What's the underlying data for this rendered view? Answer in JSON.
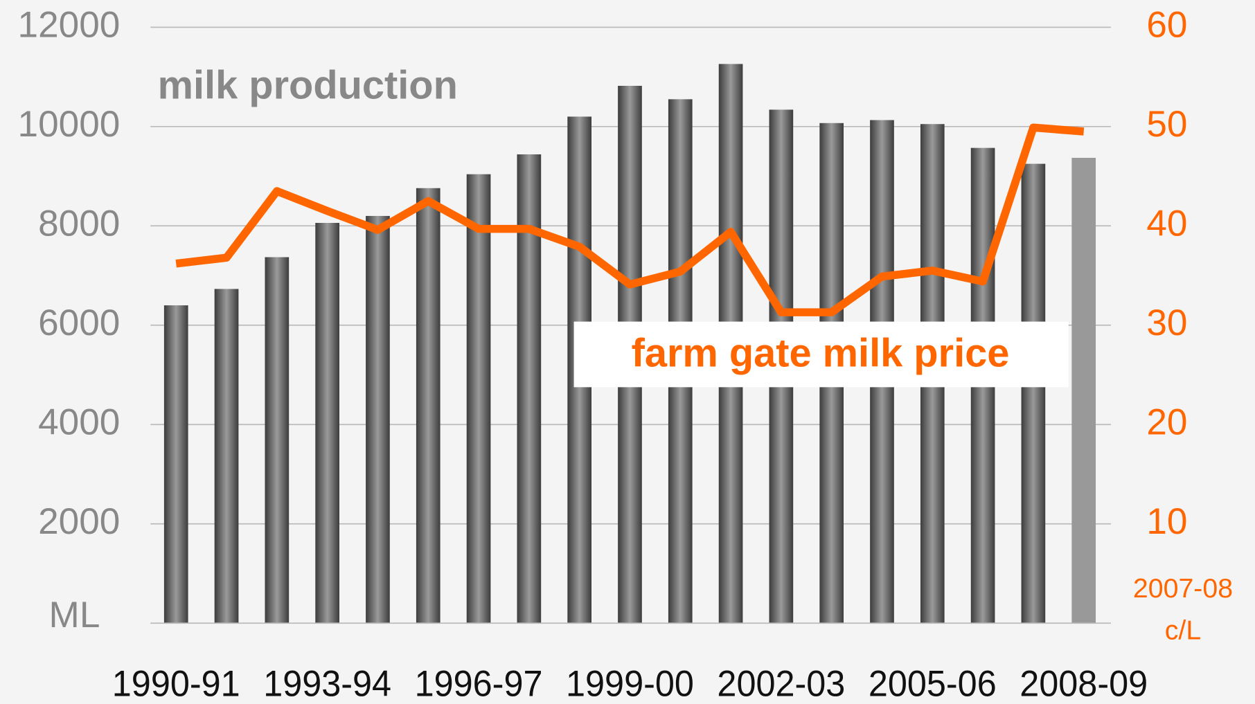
{
  "chart_data": {
    "type": "bar_line",
    "categories": [
      "1990-91",
      null,
      null,
      "1993-94",
      null,
      null,
      "1996-97",
      null,
      null,
      "1999-00",
      null,
      null,
      "2002-03",
      null,
      null,
      "2005-06",
      null,
      null,
      "2008-09"
    ],
    "series": [
      {
        "name": "milk production",
        "type": "bar",
        "color": "#555555",
        "highlight_color": "#999999",
        "highlight_index": 18,
        "values": [
          6400,
          6730,
          7370,
          8060,
          8200,
          8760,
          9040,
          9440,
          10200,
          10820,
          10550,
          11260,
          10340,
          10070,
          10130,
          10050,
          9570,
          9250,
          9370
        ]
      },
      {
        "name": "farm gate milk price",
        "type": "line",
        "axis": "y2",
        "color": "#ff6600",
        "values": [
          36.2,
          36.8,
          43.5,
          41.5,
          39.6,
          42.5,
          39.7,
          39.7,
          37.9,
          34.1,
          35.4,
          39.4,
          31.3,
          31.3,
          34.9,
          35.5,
          34.4,
          49.9,
          49.5
        ]
      }
    ],
    "ylabel": "ML",
    "y2label": [
      "2007-08",
      "c/L"
    ],
    "ylim": [
      0,
      12000
    ],
    "yticks": [
      2000,
      4000,
      6000,
      8000,
      10000,
      12000
    ],
    "y2lim": [
      0,
      60
    ],
    "y2ticks": [
      10,
      20,
      30,
      40,
      50,
      60
    ],
    "grid": true
  }
}
